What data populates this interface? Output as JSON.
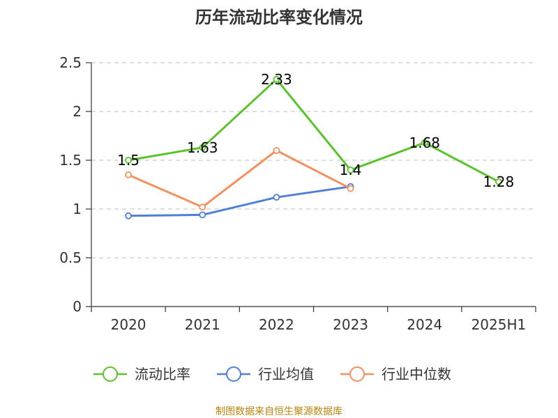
{
  "chart_data": {
    "type": "line",
    "title": "历年流动比率变化情况",
    "categories": [
      "2020",
      "2021",
      "2022",
      "2023",
      "2024",
      "2025H1"
    ],
    "ylim": [
      0,
      2.5
    ],
    "yticks": [
      0,
      0.5,
      1,
      1.5,
      2,
      2.5
    ],
    "ytick_labels": [
      "0",
      "0.5",
      "1",
      "1.5",
      "2",
      "2.5"
    ],
    "grid": true,
    "legend_position": "bottom",
    "series": [
      {
        "name": "流动比率",
        "color": "#5bc32a",
        "values": [
          1.5,
          1.63,
          2.33,
          1.4,
          1.68,
          1.28
        ],
        "labels": [
          "1.5",
          "1.63",
          "2.33",
          "1.4",
          "1.68",
          "1.28"
        ]
      },
      {
        "name": "行业均值",
        "color": "#4f7fd6",
        "values": [
          0.93,
          0.94,
          1.12,
          1.23,
          null,
          null
        ]
      },
      {
        "name": "行业中位数",
        "color": "#f5905e",
        "values": [
          1.35,
          1.02,
          1.6,
          1.21,
          null,
          null
        ]
      }
    ]
  },
  "source": "制图数据来自恒生聚源数据库"
}
